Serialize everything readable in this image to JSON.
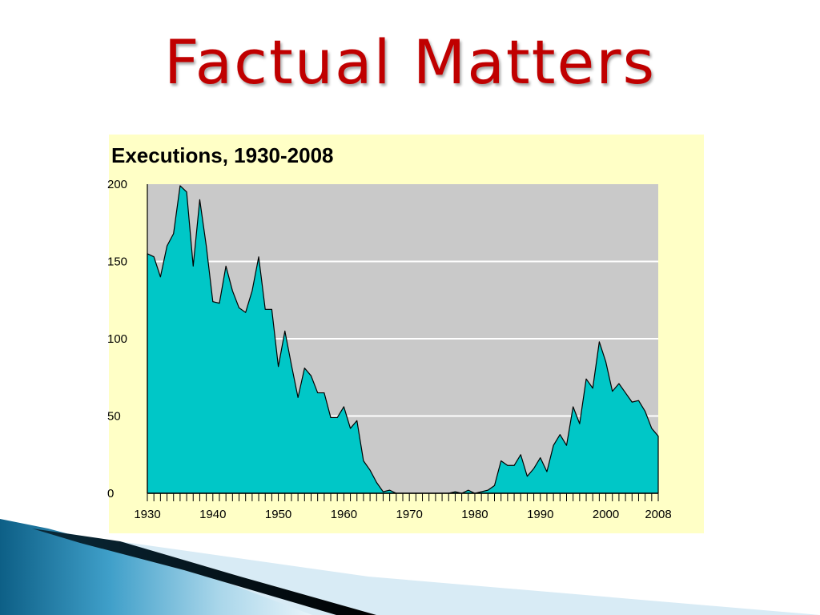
{
  "slide": {
    "title": "Factual Matters"
  },
  "colors": {
    "title": "#c00000",
    "panel_background": "#ffffc6",
    "plot_background": "#c9c9c9",
    "area_fill": "#00c7c7",
    "gridline": "#ffffff"
  },
  "chart_data": {
    "type": "area",
    "title": "Executions, 1930-2008",
    "xlabel": "",
    "ylabel": "",
    "xlim": [
      1930,
      2008
    ],
    "ylim": [
      0,
      200
    ],
    "x_ticks": [
      1930,
      1940,
      1950,
      1960,
      1970,
      1980,
      1990,
      2000,
      2008
    ],
    "y_ticks": [
      0,
      50,
      100,
      150,
      200
    ],
    "grid": "horizontal",
    "legend": "none",
    "series": [
      {
        "x": [
          1930,
          1931,
          1932,
          1933,
          1934,
          1935,
          1936,
          1937,
          1938,
          1939,
          1940,
          1941,
          1942,
          1943,
          1944,
          1945,
          1946,
          1947,
          1948,
          1949,
          1950,
          1951,
          1952,
          1953,
          1954,
          1955,
          1956,
          1957,
          1958,
          1959,
          1960,
          1961,
          1962,
          1963,
          1964,
          1965,
          1966,
          1967,
          1968,
          1969,
          1970,
          1971,
          1972,
          1973,
          1974,
          1975,
          1976,
          1977,
          1978,
          1979,
          1980,
          1981,
          1982,
          1983,
          1984,
          1985,
          1986,
          1987,
          1988,
          1989,
          1990,
          1991,
          1992,
          1993,
          1994,
          1995,
          1996,
          1997,
          1998,
          1999,
          2000,
          2001,
          2002,
          2003,
          2004,
          2005,
          2006,
          2007,
          2008
        ],
        "values": [
          155,
          153,
          140,
          160,
          168,
          199,
          195,
          147,
          190,
          160,
          124,
          123,
          147,
          131,
          120,
          117,
          131,
          153,
          119,
          119,
          82,
          105,
          83,
          62,
          81,
          76,
          65,
          65,
          49,
          49,
          56,
          42,
          47,
          21,
          15,
          7,
          1,
          2,
          0,
          0,
          0,
          0,
          0,
          0,
          0,
          0,
          0,
          1,
          0,
          2,
          0,
          1,
          2,
          5,
          21,
          18,
          18,
          25,
          11,
          16,
          23,
          14,
          31,
          38,
          31,
          56,
          45,
          74,
          68,
          98,
          85,
          66,
          71,
          65,
          59,
          60,
          53,
          42,
          37
        ]
      }
    ]
  }
}
